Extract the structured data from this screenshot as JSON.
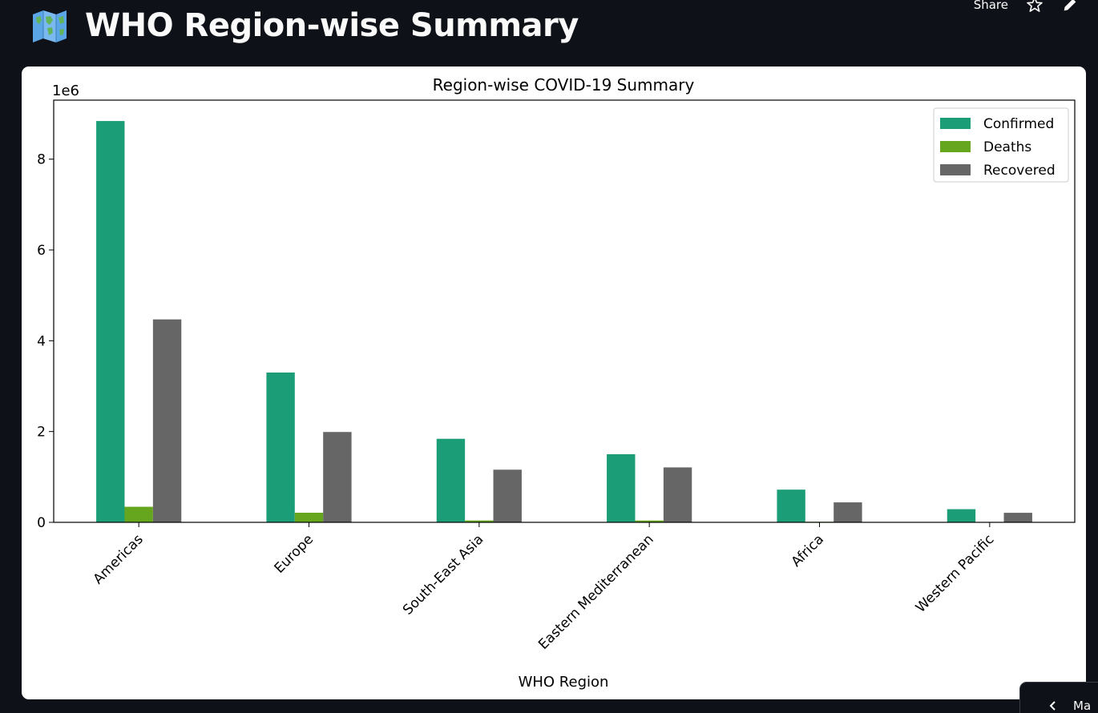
{
  "header": {
    "title": "WHO Region-wise Summary",
    "icon": "world-map-icon"
  },
  "toolbar": {
    "share_label": "Share",
    "star_icon": "star-icon",
    "edit_icon": "pencil-icon"
  },
  "side_panel": {
    "label": "Ma",
    "icon": "chevron-left-icon"
  },
  "chart_data": {
    "type": "bar",
    "title": "Region-wise COVID-19 Summary",
    "xlabel": "WHO Region",
    "ylabel": "",
    "offset_label": "1e6",
    "scale": 1000000,
    "categories": [
      "Americas",
      "Europe",
      "South-East Asia",
      "Eastern Mediterranean",
      "Africa",
      "Western Pacific"
    ],
    "series": [
      {
        "name": "Confirmed",
        "color": "#1b9e77",
        "values": [
          8840000,
          3300000,
          1840000,
          1500000,
          720000,
          290000
        ]
      },
      {
        "name": "Deaths",
        "color": "#66a61e",
        "values": [
          343000,
          212000,
          41000,
          40000,
          13000,
          8000
        ]
      },
      {
        "name": "Recovered",
        "color": "#666666",
        "values": [
          4470000,
          1990000,
          1160000,
          1210000,
          440000,
          210000
        ]
      }
    ],
    "ylim": [
      0,
      9300000
    ],
    "yticks": [
      0,
      2,
      4,
      6,
      8
    ],
    "grid": false,
    "legend_position": "top-right"
  }
}
